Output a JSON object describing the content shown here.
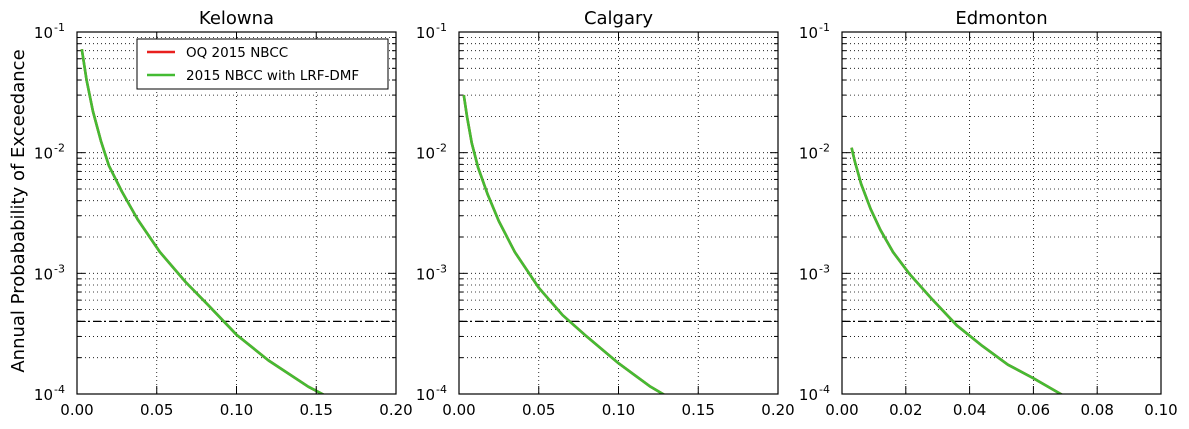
{
  "chart_data": {
    "type": "line",
    "ylabel": "Annual Probabability of Exceedance",
    "yscale": "log",
    "ylim": [
      0.0001,
      0.1
    ],
    "ytick_labels": [
      {
        "base": "10",
        "exp": "-4"
      },
      {
        "base": "10",
        "exp": "-3"
      },
      {
        "base": "10",
        "exp": "-2"
      },
      {
        "base": "10",
        "exp": "-1"
      }
    ],
    "grid": true,
    "reference_line": {
      "y": 0.0004,
      "style": "dash-dot",
      "color": "#000000"
    },
    "legend": {
      "placement": "top-right",
      "entries": [
        {
          "name": "OQ 2015 NBCC",
          "color": "#e8201e"
        },
        {
          "name": "2015 NBCC with LRF-DMF",
          "color": "#44bb33"
        }
      ]
    },
    "panels": [
      {
        "title": "Kelowna",
        "xlim": [
          0,
          0.2
        ],
        "xticks": [
          0,
          0.05,
          0.1,
          0.15,
          0.2
        ],
        "xtick_labels": [
          "0.00",
          "0.05",
          "0.10",
          "0.15",
          "0.20"
        ],
        "series": [
          {
            "name": "OQ 2015 NBCC",
            "color": "#e8201e",
            "x": [
              0.003,
              0.006,
              0.01,
              0.015,
              0.02,
              0.028,
              0.038,
              0.052,
              0.068,
              0.082,
              0.1,
              0.12,
              0.145,
              0.16
            ],
            "y": [
              0.072,
              0.04,
              0.022,
              0.0125,
              0.0078,
              0.0048,
              0.0028,
              0.0015,
              0.00085,
              0.00055,
              0.00031,
              0.00019,
              0.000115,
              9.05e-05
            ]
          },
          {
            "name": "2015 NBCC with LRF-DMF",
            "color": "#44bb33",
            "x": [
              0.003,
              0.006,
              0.01,
              0.015,
              0.02,
              0.028,
              0.038,
              0.052,
              0.068,
              0.082,
              0.1,
              0.12,
              0.145,
              0.16
            ],
            "y": [
              0.072,
              0.04,
              0.022,
              0.0125,
              0.0078,
              0.0048,
              0.0028,
              0.0015,
              0.00085,
              0.00055,
              0.00031,
              0.00019,
              0.000115,
              9.05e-05
            ]
          }
        ]
      },
      {
        "title": "Calgary",
        "xlim": [
          0,
          0.2
        ],
        "xticks": [
          0,
          0.05,
          0.1,
          0.15,
          0.2
        ],
        "xtick_labels": [
          "0.00",
          "0.05",
          "0.10",
          "0.15",
          "0.20"
        ],
        "series": [
          {
            "name": "OQ 2015 NBCC",
            "color": "#e8201e",
            "x": [
              0.003,
              0.005,
              0.008,
              0.012,
              0.018,
              0.025,
              0.035,
              0.05,
              0.065,
              0.08,
              0.1,
              0.12,
              0.135
            ],
            "y": [
              0.03,
              0.02,
              0.012,
              0.0075,
              0.0045,
              0.0027,
              0.0015,
              0.00076,
              0.00045,
              0.0003,
              0.00018,
              0.000115,
              8.8e-05
            ]
          },
          {
            "name": "2015 NBCC with LRF-DMF",
            "color": "#44bb33",
            "x": [
              0.003,
              0.005,
              0.008,
              0.012,
              0.018,
              0.025,
              0.035,
              0.05,
              0.065,
              0.08,
              0.1,
              0.12,
              0.135
            ],
            "y": [
              0.03,
              0.02,
              0.012,
              0.0075,
              0.0045,
              0.0027,
              0.0015,
              0.00076,
              0.00045,
              0.0003,
              0.00018,
              0.000115,
              8.8e-05
            ]
          }
        ]
      },
      {
        "title": "Edmonton",
        "xlim": [
          0,
          0.1
        ],
        "xticks": [
          0,
          0.02,
          0.04,
          0.06,
          0.08,
          0.1
        ],
        "xtick_labels": [
          "0.00",
          "0.02",
          "0.04",
          "0.06",
          "0.08",
          "0.10"
        ],
        "series": [
          {
            "name": "OQ 2015 NBCC",
            "color": "#e8201e",
            "x": [
              0.003,
              0.004,
              0.006,
              0.009,
              0.012,
              0.016,
              0.021,
              0.028,
              0.036,
              0.044,
              0.052,
              0.06,
              0.07
            ],
            "y": [
              0.011,
              0.0085,
              0.0055,
              0.0034,
              0.0023,
              0.0015,
              0.001,
              0.00062,
              0.00037,
              0.00025,
              0.000175,
              0.000135,
              9.5e-05
            ]
          },
          {
            "name": "2015 NBCC with LRF-DMF",
            "color": "#44bb33",
            "x": [
              0.003,
              0.004,
              0.006,
              0.009,
              0.012,
              0.016,
              0.021,
              0.028,
              0.036,
              0.044,
              0.052,
              0.06,
              0.07
            ],
            "y": [
              0.011,
              0.0085,
              0.0055,
              0.0034,
              0.0023,
              0.0015,
              0.001,
              0.00062,
              0.00037,
              0.00025,
              0.000175,
              0.000135,
              9.5e-05
            ]
          }
        ]
      }
    ]
  }
}
